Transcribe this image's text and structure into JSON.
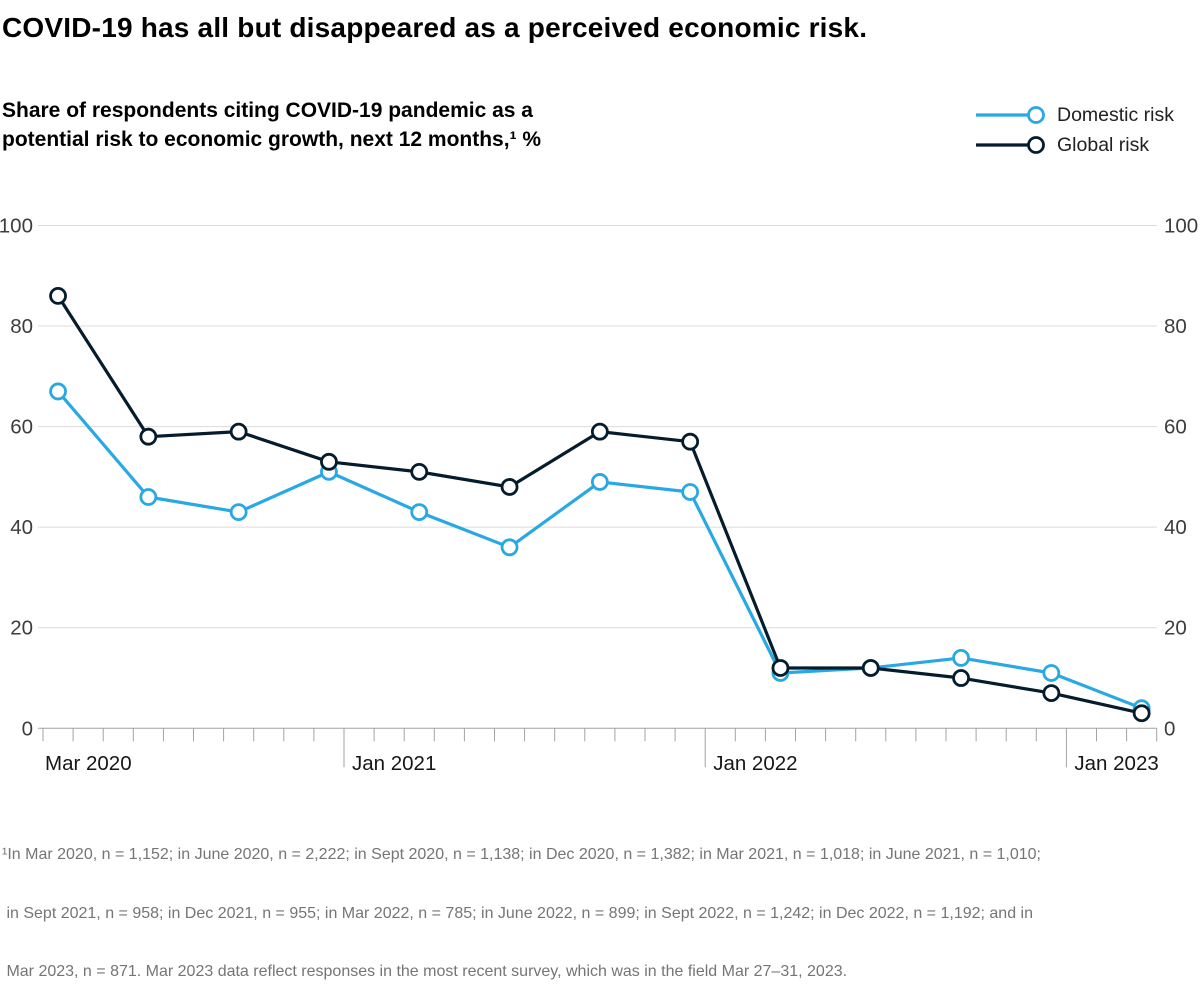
{
  "title": "COVID-19 has all but disappeared as a perceived economic risk.",
  "subtitle": {
    "line1": "Share of respondents citing COVID-19 pandemic as a",
    "line2": "potential risk to economic growth, next 12 months,¹ %"
  },
  "colors": {
    "domestic": "#29A8E4",
    "global": "#051C2C",
    "gridline": "#dcdcdc",
    "axis": "#a3a3a3",
    "axis_label": "#3d3d3d",
    "x_label": "#161616",
    "footnote": "#757575"
  },
  "chart_data": {
    "type": "line",
    "x": [
      "Mar 2020",
      "June 2020",
      "Sept 2020",
      "Dec 2020",
      "Mar 2021",
      "June 2021",
      "Sept 2021",
      "Dec 2021",
      "Mar 2022",
      "June 2022",
      "Sept 2022",
      "Dec 2022",
      "Mar 2023"
    ],
    "series": [
      {
        "name": "Domestic risk",
        "color": "#29A8E4",
        "values": [
          67,
          46,
          43,
          51,
          43,
          36,
          49,
          47,
          11,
          12,
          14,
          11,
          4
        ]
      },
      {
        "name": "Global risk",
        "color": "#051C2C",
        "values": [
          86,
          58,
          59,
          53,
          51,
          48,
          59,
          57,
          12,
          12,
          10,
          7,
          3
        ]
      }
    ],
    "ylim": [
      0,
      100
    ],
    "yticks": [
      0,
      20,
      40,
      60,
      80,
      100
    ],
    "y_axis_sides": [
      "left",
      "right"
    ],
    "x_axis_labels": [
      {
        "label": "Mar 2020",
        "month_index": 0,
        "long_tick": false
      },
      {
        "label": "Jan 2021",
        "month_index": 10,
        "long_tick": true
      },
      {
        "label": "Jan 2022",
        "month_index": 22,
        "long_tick": true
      },
      {
        "label": "Jan 2023",
        "month_index": 34,
        "long_tick": true
      }
    ],
    "minor_ticks": "monthly",
    "months_span": 38,
    "grid": true,
    "legend_position": "top-right",
    "title": "COVID-19 has all but disappeared as a perceived economic risk.",
    "ylabel": "Share of respondents citing COVID-19 pandemic as a potential risk to economic growth, next 12 months,¹ %"
  },
  "footnote": {
    "lines": [
      "¹In Mar 2020, n = 1,152; in June 2020, n = 2,222; in Sept 2020, n = 1,138; in Dec 2020, n = 1,382; in Mar 2021, n = 1,018; in June 2021, n = 1,010;",
      " in Sept 2021, n = 958; in Dec 2021, n = 955; in Mar 2022, n = 785; in June 2022, n = 899; in Sept 2022, n = 1,242; in Dec 2022, n = 1,192; and in",
      " Mar 2023, n = 871. Mar 2023 data reflect responses in the most recent survey, which was in the field Mar 27–31, 2023."
    ]
  }
}
